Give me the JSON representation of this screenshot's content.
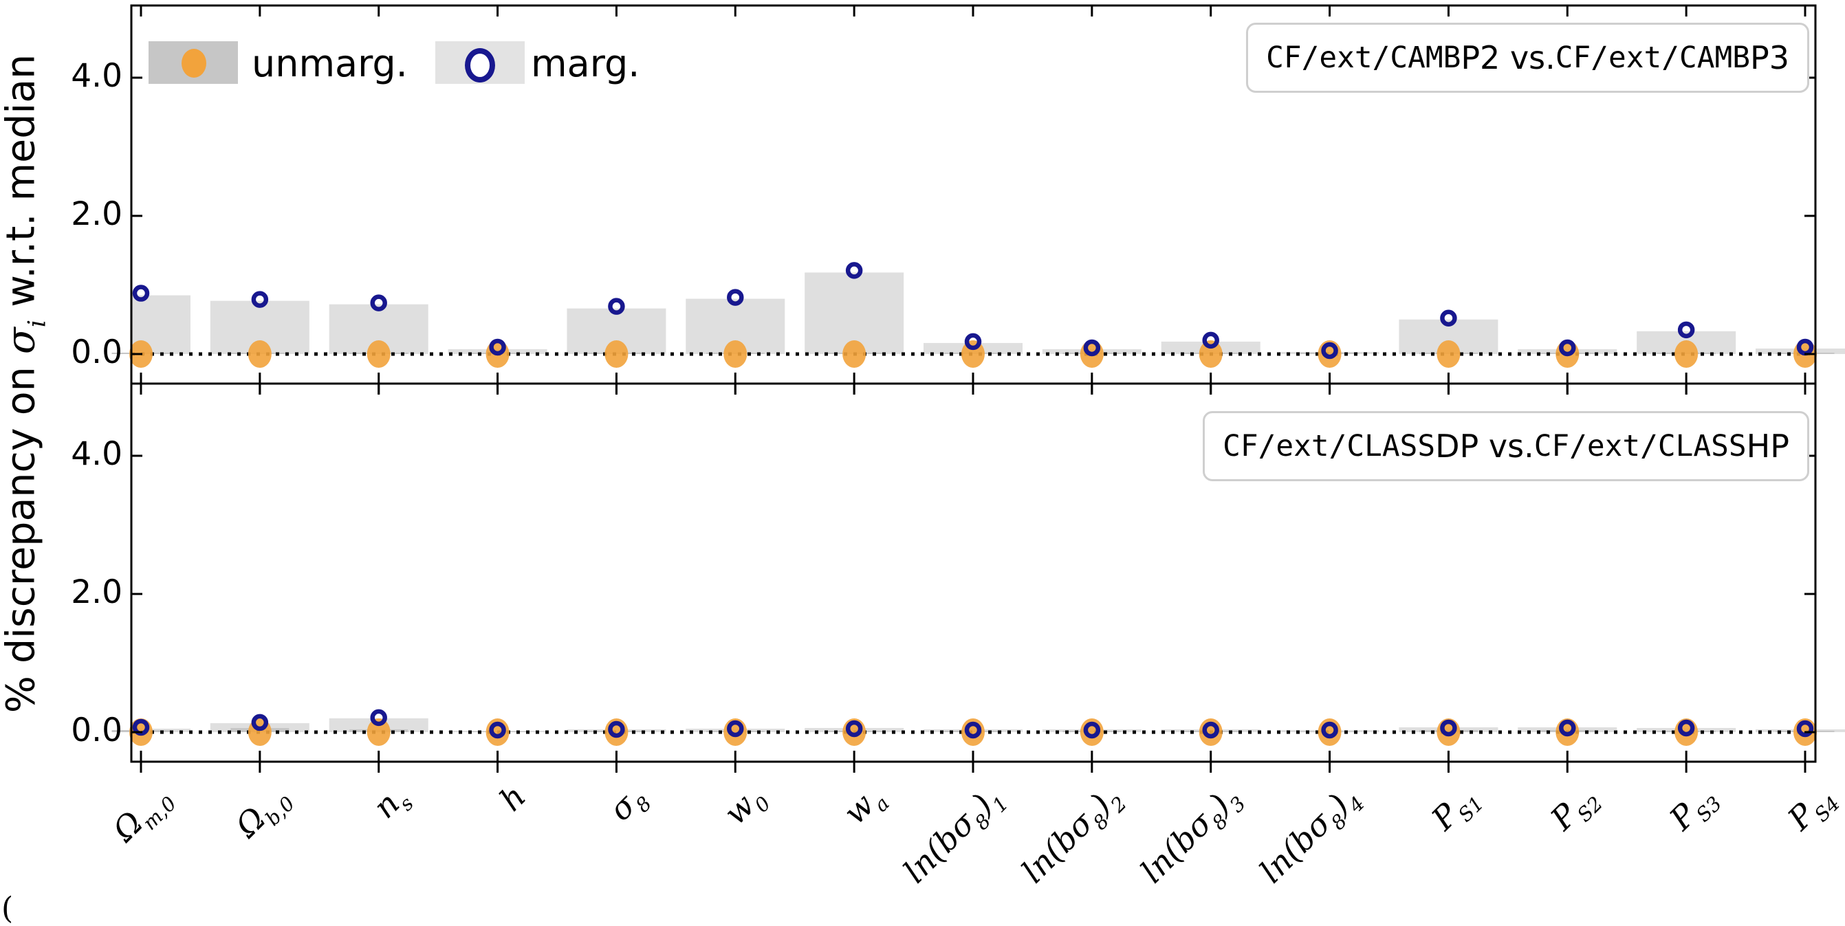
{
  "figure": {
    "ylabel_segments": [
      {
        "t": "% discrepancy on "
      },
      {
        "t": "σ",
        "serif": true
      },
      {
        "t": "i",
        "serif": true,
        "sub": true
      },
      {
        "t": " w.r.t. median"
      }
    ],
    "legend": {
      "unmarg_label": "unmarg.",
      "marg_label": "marg."
    },
    "colors": {
      "unmarg_bar": "#c6c6c6",
      "marg_bar": "#dfdfdf",
      "unmarg_marker": "#f2a33c",
      "marg_marker": "#18188f",
      "zero_line": "#000000",
      "spine": "#000000",
      "title_border": "#cfcfcf"
    },
    "caption_fragment": "("
  },
  "chart_data": {
    "type": "bar",
    "title": "",
    "xlabel": "",
    "ylabel": "% discrepancy on sigma_i w.r.t. median",
    "ylim": [
      -0.43,
      5.05
    ],
    "yticks": {
      "values": [
        0,
        2,
        4
      ],
      "labels": [
        "0.0",
        "2.0",
        "4.0"
      ]
    },
    "grid": false,
    "legend_position": "upper left",
    "categories": [
      "Omega_m0",
      "Omega_b0",
      "n_s",
      "h",
      "sigma_8",
      "w_0",
      "w_a",
      "ln(b*sigma8)_1",
      "ln(b*sigma8)_2",
      "ln(b*sigma8)_3",
      "ln(b*sigma8)_4",
      "P_S1",
      "P_S2",
      "P_S3",
      "P_S4"
    ],
    "categories_segments": [
      [
        {
          "t": "Ω"
        },
        {
          "t": "m,0",
          "sub": true
        }
      ],
      [
        {
          "t": "Ω"
        },
        {
          "t": "b,0",
          "sub": true
        }
      ],
      [
        {
          "t": "n"
        },
        {
          "t": "s",
          "sub": true
        }
      ],
      [
        {
          "t": "h"
        }
      ],
      [
        {
          "t": "σ"
        },
        {
          "t": "8",
          "sub": true
        }
      ],
      [
        {
          "t": "w"
        },
        {
          "t": "0",
          "sub": true
        }
      ],
      [
        {
          "t": "w"
        },
        {
          "t": "a",
          "sub": true
        }
      ],
      [
        {
          "t": "ln(bσ"
        },
        {
          "t": "8",
          "sub": true
        },
        {
          "t": ")"
        },
        {
          "t": "1",
          "sub": true
        }
      ],
      [
        {
          "t": "ln(bσ"
        },
        {
          "t": "8",
          "sub": true
        },
        {
          "t": ")"
        },
        {
          "t": "2",
          "sub": true
        }
      ],
      [
        {
          "t": "ln(bσ"
        },
        {
          "t": "8",
          "sub": true
        },
        {
          "t": ")"
        },
        {
          "t": "3",
          "sub": true
        }
      ],
      [
        {
          "t": "ln(bσ"
        },
        {
          "t": "8",
          "sub": true
        },
        {
          "t": ")"
        },
        {
          "t": "4",
          "sub": true
        }
      ],
      [
        {
          "t": "P"
        },
        {
          "t": "S1",
          "sub": true
        }
      ],
      [
        {
          "t": "P"
        },
        {
          "t": "S2",
          "sub": true
        }
      ],
      [
        {
          "t": "P"
        },
        {
          "t": "S3",
          "sub": true
        }
      ],
      [
        {
          "t": "P"
        },
        {
          "t": "S4",
          "sub": true
        }
      ]
    ],
    "panels": [
      {
        "title": "CF/ext/CAMB P2 vs. CF/ext/CAMB P3",
        "title_segments": [
          {
            "t": "CF/ext/CAMB",
            "mono": true
          },
          {
            "t": " P2 vs. "
          },
          {
            "t": "CF/ext/CAMB",
            "mono": true
          },
          {
            "t": " P3"
          }
        ],
        "series": [
          {
            "name": "marg. bar",
            "values": [
              0.85,
              0.77,
              0.72,
              0.07,
              0.66,
              0.8,
              1.18,
              0.16,
              0.07,
              0.18,
              0.03,
              0.5,
              0.07,
              0.33,
              0.08
            ]
          },
          {
            "name": "unmarg. bar",
            "values": [
              0.02,
              0.02,
              0.02,
              0.02,
              0.02,
              0.02,
              0.02,
              0.02,
              0.02,
              0.02,
              0.02,
              0.02,
              0.02,
              0.02,
              0.02
            ]
          },
          {
            "name": "marg. circle",
            "values": [
              0.88,
              0.79,
              0.74,
              0.1,
              0.69,
              0.82,
              1.21,
              0.18,
              0.09,
              0.2,
              0.05,
              0.52,
              0.09,
              0.35,
              0.1
            ]
          },
          {
            "name": "unmarg. dot",
            "values": [
              0,
              0,
              0,
              0,
              0,
              0,
              0,
              0,
              0,
              0,
              0,
              0,
              0,
              0,
              0
            ]
          }
        ]
      },
      {
        "title": "CF/ext/CLASS DP vs. CF/ext/CLASS HP",
        "title_segments": [
          {
            "t": "CF/ext/CLASS",
            "mono": true
          },
          {
            "t": " DP vs. "
          },
          {
            "t": "CF/ext/CLASS",
            "mono": true
          },
          {
            "t": " HP"
          }
        ],
        "series": [
          {
            "name": "marg. bar",
            "values": [
              0.05,
              0.13,
              0.2,
              0.02,
              0.04,
              0.05,
              0.06,
              0.04,
              0.04,
              0.04,
              0.03,
              0.07,
              0.07,
              0.06,
              0.04
            ]
          },
          {
            "name": "unmarg. bar",
            "values": [
              0.03,
              0.06,
              0.04,
              0.01,
              0.02,
              0.02,
              0.02,
              0.02,
              0.02,
              0.02,
              0.01,
              0.03,
              0.03,
              0.02,
              0.02
            ]
          },
          {
            "name": "marg. circle",
            "values": [
              0.07,
              0.14,
              0.21,
              0.03,
              0.04,
              0.05,
              0.05,
              0.03,
              0.03,
              0.03,
              0.03,
              0.06,
              0.06,
              0.06,
              0.05
            ]
          },
          {
            "name": "unmarg. dot",
            "values": [
              0,
              0,
              0,
              0,
              0,
              0,
              0,
              0,
              0,
              0,
              0,
              0,
              0,
              0,
              0
            ]
          }
        ]
      }
    ]
  }
}
